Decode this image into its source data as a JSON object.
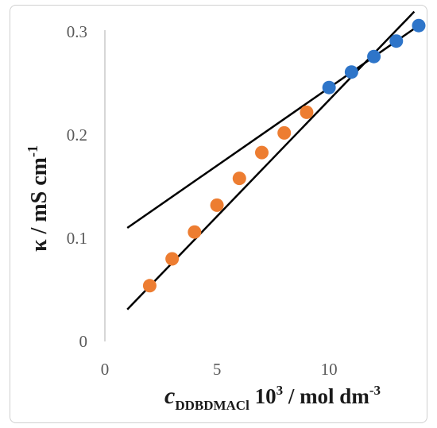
{
  "chart_data": {
    "type": "scatter",
    "xlim": [
      0,
      14
    ],
    "ylim": [
      0,
      0.3
    ],
    "x_ticks": [
      0,
      5,
      10
    ],
    "y_ticks": [
      0,
      0.1,
      0.2,
      0.3
    ],
    "x_tick_labels": [
      "0",
      "5",
      "10"
    ],
    "y_tick_labels": [
      "0",
      "0.1",
      "0.2",
      "0.3"
    ],
    "ylabel": {
      "symbol": "κ / mS cm",
      "sup": "-1"
    },
    "xlabel": {
      "var": "c",
      "sub": "DDBDMACl",
      "pre_sup": " 10",
      "sup1": "3",
      "mid": " / mol dm",
      "sup2": "-3"
    },
    "grid": false,
    "series": [
      {
        "color": "#ED7D31",
        "x": [
          2,
          3,
          4,
          5,
          6,
          7,
          8,
          9
        ],
        "y": [
          0.054,
          0.08,
          0.106,
          0.132,
          0.158,
          0.183,
          0.202,
          0.222
        ]
      },
      {
        "color": "#2E75C9",
        "x": [
          10,
          11,
          12,
          13,
          14
        ],
        "y": [
          0.246,
          0.261,
          0.276,
          0.291,
          0.306
        ]
      }
    ],
    "trendlines": [
      {
        "color": "#000000",
        "x": [
          1,
          13.8
        ],
        "y": [
          0.031,
          0.3195
        ]
      },
      {
        "color": "#000000",
        "x": [
          1,
          14
        ],
        "y": [
          0.11,
          0.306
        ]
      }
    ]
  }
}
